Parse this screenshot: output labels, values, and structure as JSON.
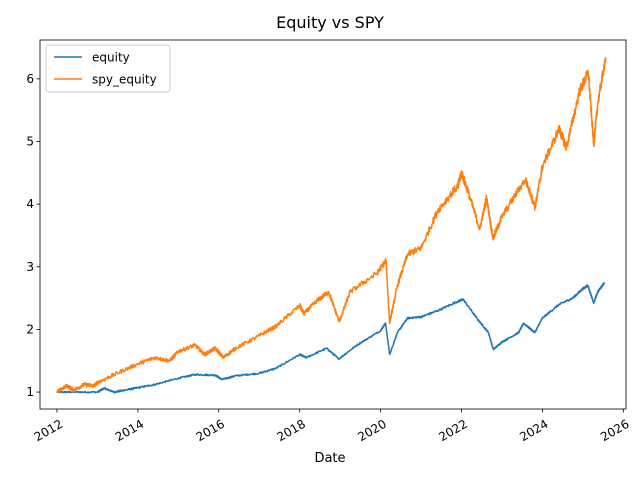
{
  "chart_data": {
    "type": "line",
    "title": "Equity vs SPY",
    "xlabel": "Date",
    "ylabel": "",
    "x_ticks": [
      "2012",
      "2014",
      "2016",
      "2018",
      "2020",
      "2022",
      "2024",
      "2026"
    ],
    "y_ticks": [
      "1",
      "2",
      "3",
      "4",
      "5",
      "6"
    ],
    "xlim": [
      "2011-08-01",
      "2026-01-25"
    ],
    "ylim": [
      0.73,
      6.62
    ],
    "grid": false,
    "legend_position": "top-left",
    "series": [
      {
        "name": "equity",
        "color": "#1f77b4",
        "points": [
          [
            "2012-01-01",
            1.0
          ],
          [
            "2012-06-01",
            1.0
          ],
          [
            "2013-01-01",
            1.0
          ],
          [
            "2013-03-01",
            1.06
          ],
          [
            "2013-06-01",
            1.0
          ],
          [
            "2013-09-01",
            1.03
          ],
          [
            "2014-01-01",
            1.07
          ],
          [
            "2014-06-01",
            1.12
          ],
          [
            "2015-01-01",
            1.22
          ],
          [
            "2015-06-01",
            1.28
          ],
          [
            "2015-12-01",
            1.27
          ],
          [
            "2016-02-01",
            1.2
          ],
          [
            "2016-06-01",
            1.26
          ],
          [
            "2017-01-01",
            1.3
          ],
          [
            "2017-06-01",
            1.38
          ],
          [
            "2018-01-01",
            1.6
          ],
          [
            "2018-03-01",
            1.55
          ],
          [
            "2018-09-01",
            1.7
          ],
          [
            "2018-12-20",
            1.53
          ],
          [
            "2019-06-01",
            1.75
          ],
          [
            "2020-01-01",
            1.98
          ],
          [
            "2020-02-15",
            2.1
          ],
          [
            "2020-03-23",
            1.6
          ],
          [
            "2020-06-01",
            1.95
          ],
          [
            "2020-09-01",
            2.18
          ],
          [
            "2021-01-01",
            2.2
          ],
          [
            "2021-06-01",
            2.3
          ],
          [
            "2021-12-01",
            2.45
          ],
          [
            "2022-01-15",
            2.48
          ],
          [
            "2022-06-01",
            2.15
          ],
          [
            "2022-09-01",
            1.95
          ],
          [
            "2022-10-15",
            1.68
          ],
          [
            "2023-01-01",
            1.8
          ],
          [
            "2023-06-01",
            1.95
          ],
          [
            "2023-07-15",
            2.1
          ],
          [
            "2023-10-25",
            1.95
          ],
          [
            "2024-01-01",
            2.18
          ],
          [
            "2024-06-01",
            2.4
          ],
          [
            "2024-10-01",
            2.5
          ],
          [
            "2025-01-01",
            2.65
          ],
          [
            "2025-02-15",
            2.7
          ],
          [
            "2025-04-08",
            2.42
          ],
          [
            "2025-05-15",
            2.6
          ],
          [
            "2025-07-15",
            2.75
          ]
        ]
      },
      {
        "name": "spy_equity",
        "color": "#ff7f0e",
        "points": [
          [
            "2012-01-01",
            1.0
          ],
          [
            "2012-04-01",
            1.1
          ],
          [
            "2012-06-01",
            1.03
          ],
          [
            "2012-09-01",
            1.12
          ],
          [
            "2012-12-01",
            1.1
          ],
          [
            "2013-01-01",
            1.15
          ],
          [
            "2013-06-01",
            1.28
          ],
          [
            "2014-01-01",
            1.45
          ],
          [
            "2014-06-01",
            1.55
          ],
          [
            "2014-10-15",
            1.5
          ],
          [
            "2015-01-01",
            1.65
          ],
          [
            "2015-06-01",
            1.75
          ],
          [
            "2015-08-25",
            1.6
          ],
          [
            "2015-12-01",
            1.7
          ],
          [
            "2016-02-11",
            1.55
          ],
          [
            "2016-06-01",
            1.7
          ],
          [
            "2017-01-01",
            1.9
          ],
          [
            "2017-06-01",
            2.05
          ],
          [
            "2018-01-01",
            2.38
          ],
          [
            "2018-02-08",
            2.25
          ],
          [
            "2018-06-01",
            2.45
          ],
          [
            "2018-09-20",
            2.6
          ],
          [
            "2018-12-24",
            2.12
          ],
          [
            "2019-04-01",
            2.6
          ],
          [
            "2019-12-01",
            2.9
          ],
          [
            "2020-02-19",
            3.1
          ],
          [
            "2020-03-23",
            2.1
          ],
          [
            "2020-06-01",
            2.7
          ],
          [
            "2020-09-01",
            3.2
          ],
          [
            "2021-01-01",
            3.3
          ],
          [
            "2021-06-01",
            3.9
          ],
          [
            "2021-12-01",
            4.3
          ],
          [
            "2022-01-01",
            4.5
          ],
          [
            "2022-03-01",
            4.2
          ],
          [
            "2022-06-15",
            3.6
          ],
          [
            "2022-08-15",
            4.1
          ],
          [
            "2022-10-12",
            3.45
          ],
          [
            "2023-01-01",
            3.8
          ],
          [
            "2023-07-31",
            4.4
          ],
          [
            "2023-10-27",
            3.95
          ],
          [
            "2024-01-01",
            4.6
          ],
          [
            "2024-06-01",
            5.2
          ],
          [
            "2024-08-05",
            4.9
          ],
          [
            "2024-12-01",
            5.8
          ],
          [
            "2025-02-19",
            6.1
          ],
          [
            "2025-04-08",
            4.95
          ],
          [
            "2025-05-15",
            5.6
          ],
          [
            "2025-07-25",
            6.35
          ]
        ]
      }
    ]
  }
}
